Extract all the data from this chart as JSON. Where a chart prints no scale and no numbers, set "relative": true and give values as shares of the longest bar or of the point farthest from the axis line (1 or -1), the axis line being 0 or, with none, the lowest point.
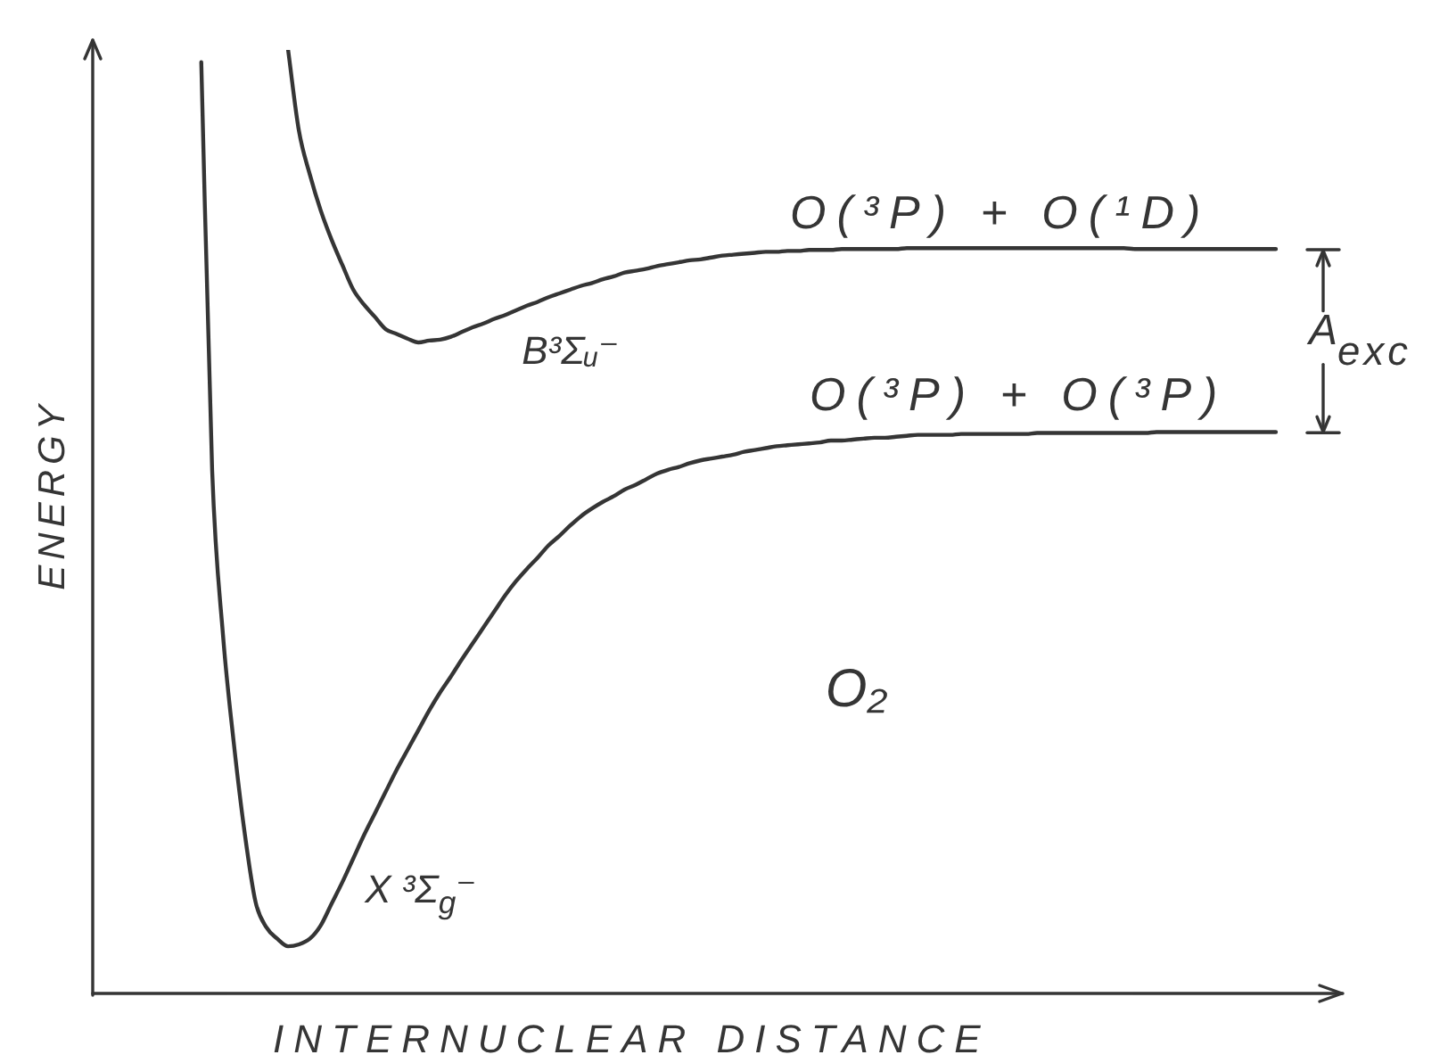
{
  "chart_data": {
    "type": "line",
    "xlabel": "INTERNUCLEAR DISTANCE",
    "ylabel": "ENERGY",
    "relative": true,
    "categories": [
      null,
      null,
      null,
      null,
      null,
      null,
      null,
      null,
      null,
      null,
      null,
      null,
      null,
      null,
      null,
      null,
      null,
      null,
      null,
      null,
      null,
      null,
      null,
      null,
      null,
      null,
      null,
      null,
      null,
      null,
      null,
      null,
      null,
      null,
      null,
      null,
      null,
      null,
      null,
      null,
      null,
      null,
      null,
      null,
      null,
      null,
      null,
      null,
      null,
      null,
      null,
      null,
      null,
      null,
      null,
      null,
      null,
      null,
      null,
      null,
      null,
      null,
      null,
      null,
      null,
      null,
      null,
      null,
      null,
      null,
      null,
      null,
      null,
      null,
      null,
      null,
      null,
      null,
      null,
      null,
      null,
      null,
      null,
      null,
      null,
      null,
      null,
      null,
      null,
      null,
      null,
      null,
      null,
      null,
      null,
      null,
      null,
      null,
      null,
      null,
      null,
      null,
      null,
      null,
      null,
      null,
      null,
      null,
      null,
      null,
      null,
      null,
      null,
      null,
      null,
      null
    ],
    "series": [
      {
        "name": "X ³Σ$_{g}$⁻",
        "color": "#353535",
        "values": [
          null,
          null,
          null,
          null,
          null,
          null,
          null,
          null,
          null,
          null,
          0.987,
          0.555,
          0.38,
          0.265,
          0.17,
          0.097,
          0.07,
          0.058,
          0.05,
          0.052,
          0.058,
          0.072,
          0.095,
          0.118,
          0.143,
          0.168,
          0.191,
          0.214,
          0.237,
          0.258,
          0.279,
          0.3,
          0.319,
          0.336,
          0.354,
          0.371,
          0.388,
          0.405,
          0.422,
          0.437,
          0.45,
          0.462,
          0.475,
          0.485,
          0.496,
          0.506,
          0.514,
          0.521,
          0.527,
          0.534,
          0.539,
          0.545,
          0.551,
          0.555,
          0.558,
          0.562,
          0.565,
          0.567,
          0.569,
          0.571,
          0.574,
          0.576,
          0.578,
          0.58,
          0.581,
          0.582,
          0.583,
          0.584,
          0.586,
          0.586,
          0.587,
          0.588,
          0.589,
          0.589,
          0.59,
          0.591,
          0.592,
          0.592,
          0.592,
          0.592,
          0.593,
          0.593,
          0.593,
          0.593,
          0.593,
          0.593,
          0.593,
          0.594,
          0.594,
          0.594,
          0.594,
          0.594,
          0.594,
          0.594,
          0.594,
          0.594,
          0.594,
          0.594,
          0.595,
          0.595,
          0.595,
          0.595,
          0.595,
          0.595,
          0.595,
          0.595,
          0.595,
          0.595,
          0.595,
          0.595,
          null,
          null,
          null,
          null,
          null,
          null
        ]
      },
      {
        "name": "B³Σᵤ⁻",
        "color": "#353535",
        "values": [
          null,
          null,
          null,
          null,
          null,
          null,
          null,
          null,
          null,
          null,
          null,
          null,
          null,
          null,
          null,
          null,
          null,
          null,
          1,
          0.914,
          0.868,
          0.83,
          0.799,
          0.772,
          0.746,
          0.73,
          0.717,
          0.704,
          0.699,
          0.694,
          0.69,
          0.692,
          0.693,
          0.696,
          0.701,
          0.706,
          0.71,
          0.715,
          0.719,
          0.724,
          0.729,
          0.733,
          0.738,
          0.742,
          0.746,
          0.75,
          0.753,
          0.757,
          0.76,
          0.764,
          0.766,
          0.768,
          0.771,
          0.773,
          0.775,
          0.777,
          0.778,
          0.78,
          0.782,
          0.783,
          0.784,
          0.785,
          0.786,
          0.786,
          0.787,
          0.787,
          0.788,
          0.788,
          0.788,
          0.789,
          0.789,
          0.789,
          0.789,
          0.789,
          0.789,
          0.79,
          0.79,
          0.79,
          0.79,
          0.79,
          0.79,
          0.79,
          0.79,
          0.79,
          0.79,
          0.79,
          0.79,
          0.79,
          0.79,
          0.79,
          0.79,
          0.79,
          0.79,
          0.79,
          0.79,
          0.79,
          0.789,
          0.789,
          0.789,
          0.789,
          0.789,
          0.789,
          0.789,
          0.789,
          0.789,
          0.789,
          0.789,
          0.789,
          0.789,
          0.789,
          null,
          null,
          null,
          null,
          null,
          null
        ]
      }
    ],
    "annotations": [
      {
        "text": "O(³P) + O(¹D)",
        "y": 0.789
      },
      {
        "text": "O(³P) + O(³P)",
        "y": 0.595
      },
      "A$_{exc}$",
      "O₂"
    ]
  }
}
